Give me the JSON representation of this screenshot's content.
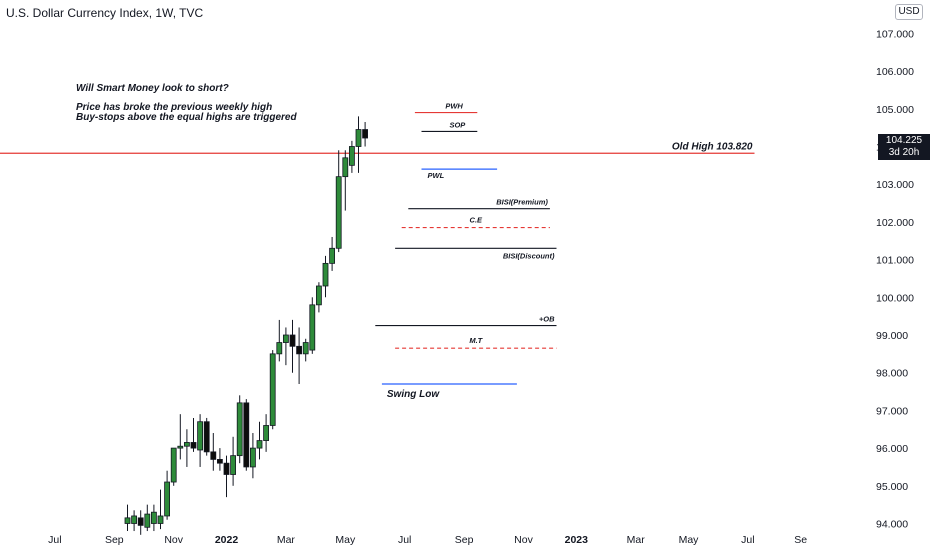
{
  "header": {
    "symbol_title": "U.S. Dollar Currency Index, 1W, TVC",
    "currency_button": "USD"
  },
  "notes": {
    "line1": "Will Smart Money look to short?",
    "line2": "Price has broke the previous weekly high",
    "line3": "Buy-stops above the equal highs are triggered"
  },
  "price_tag": {
    "price": "104.225",
    "countdown": "3d 20h"
  },
  "colors": {
    "up": "#2e8b3a",
    "down": "#0d0d0d",
    "red_line": "#e53935",
    "blue_line": "#2962ff",
    "black_line": "#131722",
    "dashed": "#e53935",
    "axis_text": "#131722"
  },
  "annotations": [
    {
      "label": "PWH",
      "price": 104.9,
      "start": 44,
      "end": 53,
      "color": "red",
      "style": "solid"
    },
    {
      "label": "SOP",
      "price": 104.4,
      "start": 45,
      "end": 53,
      "color": "black",
      "style": "solid"
    },
    {
      "label": "PWL",
      "price": 103.4,
      "start": 45,
      "end": 56,
      "color": "blue",
      "style": "solid"
    },
    {
      "label": "Old High 103.820",
      "price": 103.82,
      "start": 0,
      "end": 95,
      "color": "red",
      "style": "solid"
    },
    {
      "label": "BISI(Premium)",
      "price": 102.35,
      "start": 43,
      "end": 64,
      "color": "black",
      "style": "solid"
    },
    {
      "label": "C.E",
      "price": 101.85,
      "start": 42,
      "end": 64,
      "color": "red",
      "style": "dashed"
    },
    {
      "label": "BISI(Discount)",
      "price": 101.3,
      "start": 41,
      "end": 65,
      "color": "black",
      "style": "solid"
    },
    {
      "label": "+OB",
      "price": 99.25,
      "start": 38,
      "end": 65,
      "color": "black",
      "style": "solid"
    },
    {
      "label": "M.T",
      "price": 98.65,
      "start": 41,
      "end": 65,
      "color": "red",
      "style": "dashed"
    },
    {
      "label": "Swing Low",
      "price": 97.7,
      "start": 39,
      "end": 59,
      "color": "blue",
      "style": "solid"
    }
  ],
  "chart_data": {
    "type": "candlestick",
    "title": "U.S. Dollar Currency Index, 1W, TVC",
    "y_axis": {
      "range": [
        94.0,
        107.5
      ],
      "ticks": [
        "107.000",
        "106.000",
        "105.000",
        "104.000",
        "103.000",
        "102.000",
        "101.000",
        "100.000",
        "99.000",
        "98.000",
        "97.000",
        "96.000",
        "95.000",
        "94.000"
      ]
    },
    "x_axis": {
      "ticks": [
        {
          "label": "Jul",
          "bar": -11
        },
        {
          "label": "Sep",
          "bar": -2
        },
        {
          "label": "Nov",
          "bar": 7
        },
        {
          "label": "2022",
          "bar": 15
        },
        {
          "label": "Mar",
          "bar": 24
        },
        {
          "label": "May",
          "bar": 33
        },
        {
          "label": "Jul",
          "bar": 42
        },
        {
          "label": "Sep",
          "bar": 51
        },
        {
          "label": "Nov",
          "bar": 60
        },
        {
          "label": "2023",
          "bar": 68
        },
        {
          "label": "Mar",
          "bar": 77
        },
        {
          "label": "May",
          "bar": 85
        },
        {
          "label": "Jul",
          "bar": 94
        },
        {
          "label": "Se",
          "bar": 102
        }
      ]
    },
    "candles": [
      {
        "o": 94.0,
        "h": 94.5,
        "l": 93.8,
        "c": 94.15
      },
      {
        "o": 94.0,
        "h": 94.35,
        "l": 93.8,
        "c": 94.2
      },
      {
        "o": 94.15,
        "h": 94.35,
        "l": 93.7,
        "c": 93.95
      },
      {
        "o": 93.9,
        "h": 94.5,
        "l": 93.8,
        "c": 94.25
      },
      {
        "o": 94.0,
        "h": 94.5,
        "l": 93.8,
        "c": 94.3
      },
      {
        "o": 94.0,
        "h": 94.9,
        "l": 93.85,
        "c": 94.2
      },
      {
        "o": 94.2,
        "h": 95.4,
        "l": 94.1,
        "c": 95.1
      },
      {
        "o": 95.1,
        "h": 96.0,
        "l": 95.0,
        "c": 96.0
      },
      {
        "o": 96.0,
        "h": 96.9,
        "l": 95.7,
        "c": 96.05
      },
      {
        "o": 96.05,
        "h": 96.5,
        "l": 95.5,
        "c": 96.15
      },
      {
        "o": 96.15,
        "h": 96.8,
        "l": 95.9,
        "c": 96.0
      },
      {
        "o": 95.95,
        "h": 96.9,
        "l": 95.5,
        "c": 96.7
      },
      {
        "o": 96.7,
        "h": 96.8,
        "l": 95.8,
        "c": 95.9
      },
      {
        "o": 95.9,
        "h": 96.4,
        "l": 95.4,
        "c": 95.7
      },
      {
        "o": 95.7,
        "h": 96.0,
        "l": 95.4,
        "c": 95.6
      },
      {
        "o": 95.6,
        "h": 95.8,
        "l": 94.7,
        "c": 95.3
      },
      {
        "o": 95.3,
        "h": 96.3,
        "l": 95.0,
        "c": 95.8
      },
      {
        "o": 95.8,
        "h": 97.4,
        "l": 95.6,
        "c": 97.2
      },
      {
        "o": 97.2,
        "h": 97.3,
        "l": 95.4,
        "c": 95.5
      },
      {
        "o": 95.5,
        "h": 96.4,
        "l": 95.2,
        "c": 96.0
      },
      {
        "o": 96.0,
        "h": 96.7,
        "l": 95.7,
        "c": 96.2
      },
      {
        "o": 96.2,
        "h": 96.9,
        "l": 95.9,
        "c": 96.6
      },
      {
        "o": 96.6,
        "h": 98.6,
        "l": 96.5,
        "c": 98.5
      },
      {
        "o": 98.5,
        "h": 99.4,
        "l": 98.3,
        "c": 98.8
      },
      {
        "o": 98.8,
        "h": 99.2,
        "l": 98.2,
        "c": 99.0
      },
      {
        "o": 99.0,
        "h": 99.4,
        "l": 98.0,
        "c": 98.7
      },
      {
        "o": 98.7,
        "h": 99.2,
        "l": 97.7,
        "c": 98.5
      },
      {
        "o": 98.5,
        "h": 98.9,
        "l": 98.3,
        "c": 98.8
      },
      {
        "o": 98.6,
        "h": 100.0,
        "l": 98.5,
        "c": 99.8
      },
      {
        "o": 99.8,
        "h": 100.4,
        "l": 99.6,
        "c": 100.3
      },
      {
        "o": 100.3,
        "h": 101.1,
        "l": 100.0,
        "c": 100.9
      },
      {
        "o": 100.9,
        "h": 101.6,
        "l": 100.7,
        "c": 101.3
      },
      {
        "o": 101.3,
        "h": 103.9,
        "l": 101.2,
        "c": 103.2
      },
      {
        "o": 103.2,
        "h": 103.9,
        "l": 102.3,
        "c": 103.7
      },
      {
        "o": 103.5,
        "h": 104.15,
        "l": 103.3,
        "c": 104.0
      },
      {
        "o": 104.0,
        "h": 104.8,
        "l": 103.3,
        "c": 104.45
      },
      {
        "o": 104.45,
        "h": 104.65,
        "l": 104.0,
        "c": 104.225
      }
    ]
  }
}
